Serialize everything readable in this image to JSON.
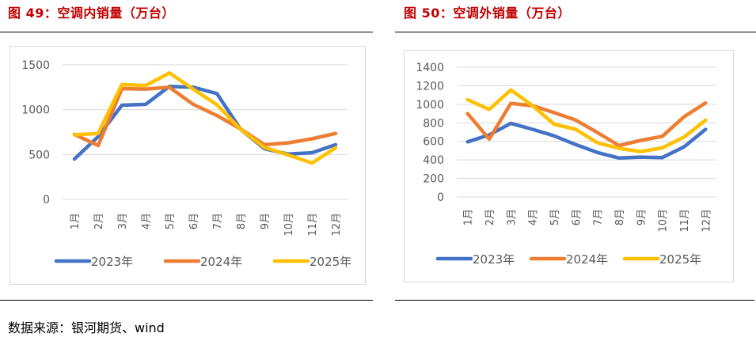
{
  "source_note": "数据来源：银河期货、wind",
  "colors": {
    "title": "#c00000",
    "series_2023": "#4472c4",
    "series_2024": "#ed7d31",
    "series_2025": "#ffc000",
    "gridline": "#d9d9d9",
    "axis_text": "#595959"
  },
  "chart_data": [
    {
      "type": "line",
      "title": "图 49：空调内销量（万台）",
      "xlabel": "",
      "ylabel": "",
      "categories": [
        "1月",
        "2月",
        "3月",
        "4月",
        "5月",
        "6月",
        "7月",
        "8月",
        "9月",
        "10月",
        "11月",
        "12月"
      ],
      "yticks": [
        0,
        500,
        1000,
        1500
      ],
      "ylim": [
        0,
        1500
      ],
      "grid": true,
      "legend": "bottom",
      "series": [
        {
          "name": "2023年",
          "color": "#4472c4",
          "values": [
            450,
            700,
            1050,
            1060,
            1260,
            1250,
            1180,
            780,
            565,
            505,
            520,
            610
          ]
        },
        {
          "name": "2024年",
          "color": "#ed7d31",
          "values": [
            725,
            600,
            1235,
            1230,
            1250,
            1060,
            935,
            785,
            610,
            630,
            675,
            735
          ]
        },
        {
          "name": "2025年",
          "color": "#ffc000",
          "values": [
            720,
            735,
            1280,
            1270,
            1410,
            1230,
            1055,
            780,
            580,
            495,
            405,
            575
          ]
        }
      ]
    },
    {
      "type": "line",
      "title": "图 50：空调外销量（万台）",
      "xlabel": "",
      "ylabel": "",
      "categories": [
        "1月",
        "2月",
        "3月",
        "4月",
        "5月",
        "6月",
        "7月",
        "8月",
        "9月",
        "10月",
        "11月",
        "12月"
      ],
      "yticks": [
        0,
        200,
        400,
        600,
        800,
        1000,
        1200,
        1400
      ],
      "ylim": [
        0,
        1400
      ],
      "grid": true,
      "legend": "bottom",
      "series": [
        {
          "name": "2023年",
          "color": "#4472c4",
          "values": [
            595,
            670,
            795,
            730,
            660,
            565,
            480,
            420,
            430,
            425,
            540,
            730
          ]
        },
        {
          "name": "2024年",
          "color": "#ed7d31",
          "values": [
            900,
            625,
            1010,
            985,
            910,
            830,
            695,
            555,
            610,
            655,
            865,
            1015
          ]
        },
        {
          "name": "2025年",
          "color": "#ffc000",
          "values": [
            1050,
            945,
            1155,
            985,
            785,
            730,
            585,
            525,
            490,
            530,
            645,
            830
          ]
        }
      ]
    }
  ]
}
